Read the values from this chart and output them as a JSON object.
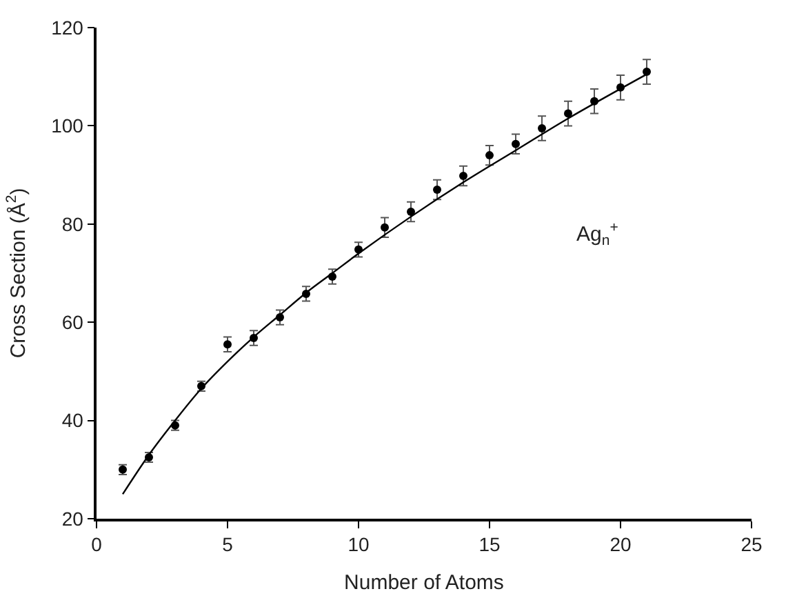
{
  "chart_data": {
    "type": "scatter",
    "xlabel": "Number of Atoms",
    "ylabel": "Cross Section (Å$^{2}$)",
    "annotations": [
      "Ag$_{n}$$^{+}$"
    ],
    "xlim": [
      0,
      25
    ],
    "xticks": [
      0,
      5,
      10,
      15,
      20,
      25
    ],
    "ylim": [
      20,
      120
    ],
    "yticks": [
      20,
      40,
      60,
      80,
      100,
      120
    ],
    "series": [
      {
        "marker": "circle",
        "color": "#000000",
        "x": [
          1,
          2,
          3,
          4,
          5,
          6,
          7,
          8,
          9,
          10,
          11,
          12,
          13,
          14,
          15,
          16,
          17,
          18,
          19,
          20,
          21
        ],
        "values": [
          30,
          32.5,
          39,
          47,
          55.5,
          56.8,
          61,
          65.8,
          69.3,
          74.8,
          79.3,
          82.5,
          87,
          89.8,
          94,
          96.3,
          99.5,
          102.5,
          105,
          107.8,
          111
        ],
        "errors": [
          1,
          1,
          1,
          1,
          1.5,
          1.5,
          1.5,
          1.5,
          1.5,
          1.5,
          2,
          2,
          2,
          2,
          2,
          2,
          2.5,
          2.5,
          2.5,
          2.5,
          2.5
        ]
      },
      {
        "type": "line",
        "marker": "none",
        "line_style": "solid",
        "color": "#000000",
        "x": [
          1,
          2,
          3,
          4,
          5,
          6,
          7,
          8,
          9,
          10,
          12,
          14,
          16,
          18,
          21
        ],
        "values": [
          25,
          33,
          40,
          46.5,
          52,
          57,
          61.5,
          66,
          70,
          74,
          81.5,
          88.5,
          95,
          101.5,
          110.5
        ]
      }
    ]
  }
}
